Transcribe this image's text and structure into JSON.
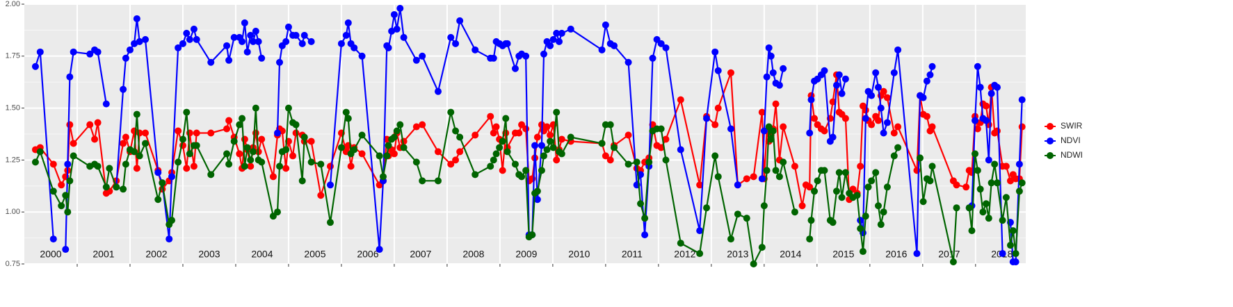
{
  "chart_data": {
    "type": "line",
    "x": [
      2000.21,
      2000.3,
      2000.55,
      2000.7,
      2000.78,
      2000.82,
      2000.86,
      2000.93,
      2001.24,
      2001.33,
      2001.39,
      2001.55,
      2001.61,
      2001.74,
      2001.87,
      2001.92,
      2002.0,
      2002.08,
      2002.13,
      2002.18,
      2002.29,
      2002.53,
      2002.61,
      2002.74,
      2002.79,
      2002.91,
      2003.0,
      2003.07,
      2003.13,
      2003.21,
      2003.26,
      2003.53,
      2003.83,
      2003.87,
      2003.97,
      2004.07,
      2004.12,
      2004.17,
      2004.22,
      2004.28,
      2004.33,
      2004.38,
      2004.43,
      2004.49,
      2004.71,
      2004.79,
      2004.83,
      2004.88,
      2004.95,
      2005.0,
      2005.08,
      2005.14,
      2005.26,
      2005.3,
      2005.43,
      2005.61,
      2005.79,
      2006.0,
      2006.09,
      2006.13,
      2006.18,
      2006.24,
      2006.39,
      2006.72,
      2006.79,
      2006.86,
      2006.89,
      2006.95,
      2007.0,
      2007.05,
      2007.11,
      2007.18,
      2007.42,
      2007.53,
      2007.83,
      2008.07,
      2008.16,
      2008.24,
      2008.53,
      2008.82,
      2008.88,
      2008.93,
      2008.99,
      2009.05,
      2009.11,
      2009.14,
      2009.29,
      2009.36,
      2009.41,
      2009.49,
      2009.55,
      2009.61,
      2009.66,
      2009.71,
      2009.79,
      2009.83,
      2009.89,
      2009.95,
      2010.01,
      2010.07,
      2010.12,
      2010.17,
      2010.34,
      2010.93,
      2011.0,
      2011.09,
      2011.16,
      2011.43,
      2011.59,
      2011.66,
      2011.74,
      2011.82,
      2011.89,
      2011.97,
      2012.05,
      2012.14,
      2012.42,
      2012.78,
      2012.91,
      2013.07,
      2013.13,
      2013.37,
      2013.5,
      2013.67,
      2013.8,
      2013.96,
      2014.0,
      2014.05,
      2014.09,
      2014.13,
      2014.17,
      2014.22,
      2014.29,
      2014.36,
      2014.58,
      2014.72,
      2014.79,
      2014.86,
      2014.89,
      2014.95,
      2015.01,
      2015.08,
      2015.14,
      2015.25,
      2015.3,
      2015.37,
      2015.42,
      2015.47,
      2015.54,
      2015.61,
      2015.68,
      2015.76,
      2015.82,
      2015.87,
      2015.92,
      2015.97,
      2016.03,
      2016.11,
      2016.16,
      2016.21,
      2016.26,
      2016.33,
      2016.46,
      2016.53,
      2016.89,
      2016.95,
      2017.01,
      2017.08,
      2017.14,
      2017.18,
      2017.58,
      2017.64,
      2017.82,
      2017.88,
      2017.93,
      2017.99,
      2018.04,
      2018.09,
      2018.14,
      2018.2,
      2018.25,
      2018.3,
      2018.36,
      2018.41,
      2018.51,
      2018.58,
      2018.66,
      2018.71,
      2018.76,
      2018.83,
      2018.88
    ],
    "series": [
      {
        "name": "SWIR",
        "color": "#ff0000",
        "values": [
          1.3,
          1.31,
          1.23,
          1.13,
          1.17,
          1.2,
          1.42,
          1.33,
          1.42,
          1.35,
          1.43,
          1.09,
          1.1,
          1.15,
          1.33,
          1.36,
          1.29,
          1.39,
          1.21,
          1.38,
          1.38,
          1.2,
          1.11,
          1.15,
          1.19,
          1.39,
          1.32,
          1.21,
          1.38,
          1.22,
          1.38,
          1.38,
          1.4,
          1.44,
          1.36,
          1.28,
          1.21,
          1.35,
          1.3,
          1.22,
          1.31,
          1.38,
          1.29,
          1.35,
          1.17,
          1.37,
          1.4,
          1.39,
          1.21,
          1.34,
          1.27,
          1.38,
          1.37,
          1.34,
          1.34,
          1.08,
          1.22,
          1.38,
          1.29,
          1.32,
          1.22,
          1.31,
          1.28,
          1.13,
          1.15,
          1.35,
          1.27,
          1.3,
          1.28,
          1.38,
          1.31,
          1.34,
          1.41,
          1.42,
          1.29,
          1.23,
          1.25,
          1.29,
          1.37,
          1.46,
          1.38,
          1.41,
          1.35,
          1.2,
          1.38,
          1.31,
          1.38,
          1.38,
          1.42,
          1.4,
          1.15,
          1.16,
          1.26,
          1.36,
          1.42,
          1.39,
          1.41,
          1.37,
          1.42,
          1.25,
          1.3,
          1.35,
          1.34,
          1.33,
          1.27,
          1.25,
          1.32,
          1.37,
          1.21,
          1.2,
          1.24,
          1.26,
          1.42,
          1.32,
          1.31,
          1.35,
          1.54,
          1.13,
          1.46,
          1.42,
          1.5,
          1.67,
          1.13,
          1.16,
          1.17,
          1.48,
          1.16,
          1.39,
          1.34,
          1.37,
          1.4,
          1.52,
          1.25,
          1.41,
          1.22,
          1.03,
          1.13,
          1.12,
          1.56,
          1.45,
          1.42,
          1.4,
          1.39,
          1.45,
          1.53,
          1.66,
          1.48,
          1.47,
          1.45,
          1.06,
          1.11,
          1.09,
          1.22,
          1.51,
          1.49,
          1.44,
          1.42,
          1.46,
          1.44,
          1.56,
          1.58,
          1.55,
          1.38,
          1.41,
          1.2,
          1.56,
          1.47,
          1.46,
          1.39,
          1.41,
          1.15,
          1.13,
          1.12,
          1.2,
          1.19,
          1.46,
          1.4,
          1.43,
          1.52,
          1.51,
          1.42,
          1.6,
          1.38,
          1.39,
          1.22,
          1.22,
          1.15,
          1.18,
          1.16,
          1.16,
          1.41
        ]
      },
      {
        "name": "NDVI",
        "color": "#0000ff",
        "values": [
          1.7,
          1.77,
          0.87,
          null,
          0.82,
          1.23,
          1.65,
          1.77,
          1.76,
          1.78,
          1.77,
          1.52,
          null,
          1.12,
          1.59,
          1.74,
          1.78,
          1.81,
          1.93,
          1.82,
          1.83,
          1.19,
          1.14,
          0.87,
          1.17,
          1.79,
          1.81,
          1.86,
          1.83,
          1.88,
          1.83,
          1.72,
          1.8,
          1.73,
          1.84,
          1.84,
          1.82,
          1.91,
          1.77,
          1.85,
          1.82,
          1.87,
          1.82,
          1.74,
          null,
          1.38,
          1.72,
          1.8,
          1.82,
          1.89,
          1.85,
          1.85,
          1.81,
          1.85,
          1.82,
          null,
          1.13,
          1.81,
          1.85,
          1.91,
          1.81,
          1.79,
          1.75,
          0.82,
          1.15,
          1.8,
          1.79,
          1.87,
          1.95,
          1.88,
          1.98,
          1.84,
          1.73,
          1.75,
          1.58,
          1.84,
          1.81,
          1.92,
          1.78,
          1.74,
          1.74,
          1.82,
          1.81,
          1.8,
          1.81,
          1.81,
          1.69,
          1.75,
          1.76,
          1.75,
          0.89,
          0.89,
          1.32,
          1.06,
          1.32,
          1.76,
          1.82,
          1.8,
          1.83,
          1.86,
          1.82,
          1.86,
          1.88,
          1.78,
          1.9,
          1.81,
          1.8,
          1.72,
          1.13,
          1.18,
          0.89,
          1.22,
          1.74,
          1.83,
          1.81,
          1.79,
          1.3,
          0.91,
          1.45,
          1.77,
          1.68,
          1.4,
          1.13,
          null,
          null,
          1.16,
          1.39,
          1.65,
          1.79,
          1.75,
          1.67,
          1.62,
          1.61,
          1.69,
          null,
          null,
          null,
          1.38,
          1.54,
          1.63,
          1.64,
          1.66,
          1.68,
          1.34,
          1.36,
          1.61,
          1.66,
          1.57,
          1.64,
          null,
          null,
          null,
          0.96,
          0.9,
          1.45,
          1.58,
          1.56,
          1.67,
          1.6,
          1.5,
          1.38,
          1.43,
          1.67,
          1.78,
          0.8,
          1.56,
          1.55,
          1.63,
          1.66,
          1.7,
          null,
          null,
          null,
          1.02,
          1.03,
          1.44,
          1.7,
          1.6,
          1.45,
          1.44,
          1.25,
          1.57,
          1.61,
          1.6,
          0.8,
          null,
          0.95,
          0.76,
          0.76,
          1.23,
          1.54
        ]
      },
      {
        "name": "NDWI",
        "color": "#006400",
        "values": [
          1.24,
          1.29,
          1.1,
          1.03,
          1.08,
          1.0,
          1.15,
          1.27,
          1.22,
          1.23,
          1.22,
          1.12,
          1.21,
          1.12,
          1.11,
          1.23,
          1.3,
          1.29,
          1.47,
          1.27,
          1.33,
          1.06,
          1.14,
          0.94,
          0.96,
          1.24,
          1.35,
          1.48,
          1.28,
          1.32,
          1.32,
          1.18,
          1.28,
          1.23,
          1.34,
          1.42,
          1.45,
          1.22,
          1.31,
          1.25,
          1.29,
          1.5,
          1.25,
          1.24,
          0.98,
          1.0,
          1.22,
          1.29,
          1.3,
          1.5,
          1.43,
          1.42,
          1.15,
          1.36,
          1.24,
          1.23,
          0.95,
          1.31,
          1.48,
          1.45,
          1.28,
          1.3,
          1.37,
          1.27,
          1.17,
          1.27,
          1.32,
          1.35,
          1.36,
          1.39,
          1.42,
          1.31,
          1.24,
          1.15,
          1.15,
          1.48,
          1.39,
          1.36,
          1.18,
          1.22,
          1.25,
          1.28,
          1.31,
          1.34,
          1.45,
          1.29,
          1.23,
          1.18,
          1.17,
          1.2,
          0.88,
          0.89,
          1.09,
          1.1,
          1.2,
          1.27,
          1.3,
          1.34,
          1.31,
          1.48,
          1.29,
          1.28,
          1.36,
          1.33,
          1.42,
          1.42,
          1.31,
          1.23,
          1.24,
          1.04,
          0.97,
          1.24,
          1.39,
          1.4,
          1.4,
          1.25,
          0.85,
          0.8,
          1.02,
          1.27,
          1.17,
          0.87,
          0.99,
          0.97,
          0.75,
          0.83,
          1.03,
          1.2,
          1.41,
          1.35,
          1.39,
          1.2,
          1.17,
          1.24,
          1.0,
          null,
          null,
          0.87,
          0.96,
          1.1,
          1.15,
          1.2,
          1.2,
          0.96,
          0.95,
          1.1,
          1.19,
          1.07,
          1.19,
          1.09,
          1.07,
          1.08,
          0.92,
          0.81,
          0.98,
          1.12,
          1.15,
          1.19,
          1.03,
          0.94,
          1.0,
          1.12,
          1.27,
          1.31,
          null,
          1.26,
          1.05,
          1.16,
          1.15,
          1.22,
          0.76,
          1.02,
          null,
          1.02,
          0.91,
          1.28,
          1.2,
          1.11,
          1.0,
          1.04,
          0.97,
          1.14,
          1.23,
          1.14,
          0.96,
          1.07,
          0.84,
          0.91,
          0.8,
          1.1,
          1.14
        ]
      }
    ],
    "xlim": [
      2000,
      2018.95
    ],
    "xticks": [
      2001,
      2002,
      2003,
      2004,
      2005,
      2006,
      2007,
      2008,
      2009,
      2010,
      2011,
      2012,
      2013,
      2014,
      2015,
      2016,
      2017,
      2018
    ],
    "year_labels": [
      "2000",
      "2001",
      "2002",
      "2003",
      "2004",
      "2005",
      "2006",
      "2007",
      "2008",
      "2009",
      "2010",
      "2011",
      "2012",
      "2013",
      "2014",
      "2015",
      "2016",
      "2017",
      "2018"
    ],
    "ylim": [
      0.75,
      2.0
    ],
    "yticks": [
      0.75,
      {
        "value": 1.0,
        "label": "1.00"
      },
      1.25,
      {
        "value": 1.5,
        "label": "1.50"
      },
      1.75,
      {
        "value": 2.0,
        "label": "2.00"
      }
    ],
    "grid": true,
    "legend": "right"
  }
}
